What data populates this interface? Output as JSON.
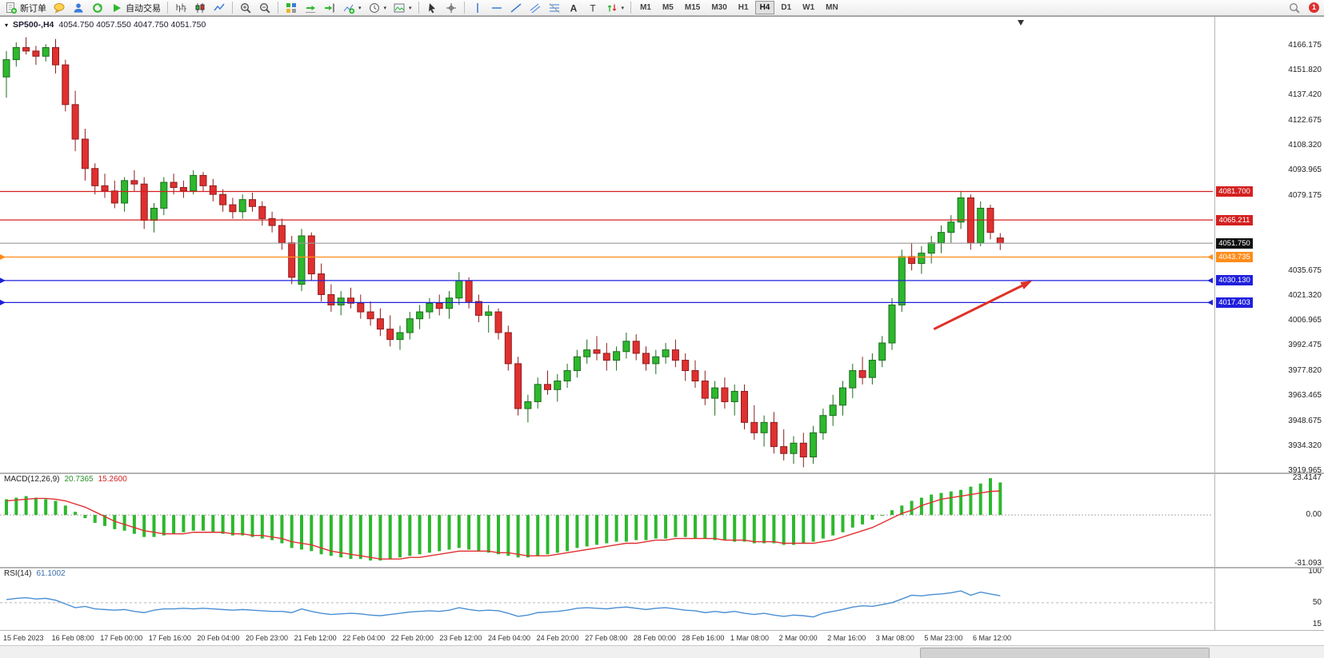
{
  "toolbar": {
    "new_order_label": "新订单",
    "autotrading_label": "自动交易",
    "timeframes": [
      "M1",
      "M5",
      "M15",
      "M30",
      "H1",
      "H4",
      "D1",
      "W1",
      "MN"
    ],
    "active_timeframe": "H4",
    "notification_count": "1",
    "items": [
      {
        "kind": "button",
        "name": "new-order-button",
        "glyph": "newdoc",
        "label": "新订单"
      },
      {
        "kind": "icon",
        "name": "ideas-icon",
        "glyph": "bubble"
      },
      {
        "kind": "icon",
        "name": "community-icon",
        "glyph": "person"
      },
      {
        "kind": "icon",
        "name": "market-refresh-icon",
        "glyph": "refresh"
      },
      {
        "kind": "button",
        "name": "autotrading-button",
        "glyph": "play",
        "label": "自动交易"
      },
      {
        "kind": "sep"
      },
      {
        "kind": "icon",
        "name": "bar-chart-icon",
        "glyph": "bars"
      },
      {
        "kind": "icon",
        "name": "candlestick-chart-icon",
        "glyph": "candles"
      },
      {
        "kind": "icon",
        "name": "line-chart-icon",
        "glyph": "line"
      },
      {
        "kind": "sep"
      },
      {
        "kind": "icon",
        "name": "zoom-in-icon",
        "glyph": "zoomin"
      },
      {
        "kind": "icon",
        "name": "zoom-out-icon",
        "glyph": "zoomout"
      },
      {
        "kind": "sep"
      },
      {
        "kind": "icon",
        "name": "tile-windows-icon",
        "glyph": "tile"
      },
      {
        "kind": "icon",
        "name": "auto-scroll-icon",
        "glyph": "autoscroll"
      },
      {
        "kind": "icon",
        "name": "chart-shift-icon",
        "glyph": "shift"
      },
      {
        "kind": "icon-caret",
        "name": "indicators-icon",
        "glyph": "indicator"
      },
      {
        "kind": "icon-caret",
        "name": "periods-icon",
        "glyph": "clock"
      },
      {
        "kind": "icon-caret",
        "name": "templates-icon",
        "glyph": "template"
      },
      {
        "kind": "sep"
      },
      {
        "kind": "icon",
        "name": "cursor-icon",
        "glyph": "cursor"
      },
      {
        "kind": "icon",
        "name": "crosshair-icon",
        "glyph": "crosshair"
      },
      {
        "kind": "sep"
      },
      {
        "kind": "icon",
        "name": "vertical-line-icon",
        "glyph": "vline"
      },
      {
        "kind": "icon",
        "name": "horizontal-line-icon",
        "glyph": "hline"
      },
      {
        "kind": "icon",
        "name": "trendline-icon",
        "glyph": "trend"
      },
      {
        "kind": "icon",
        "name": "channel-icon",
        "glyph": "channel"
      },
      {
        "kind": "icon",
        "name": "fibonacci-icon",
        "glyph": "fibo"
      },
      {
        "kind": "icon",
        "name": "text-icon",
        "glyph": "textA"
      },
      {
        "kind": "icon",
        "name": "label-icon",
        "glyph": "textT"
      },
      {
        "kind": "icon-caret",
        "name": "arrows-icon",
        "glyph": "arrows"
      },
      {
        "kind": "sep"
      },
      {
        "kind": "tf-group"
      }
    ]
  },
  "chart_data": [
    {
      "type": "candlestick",
      "title": "SP500-,H4",
      "ohlc_display": "4054.750 4057.550 4047.750 4051.750",
      "last_price": "4051.750",
      "ylim": [
        3919.0,
        4181.9
      ],
      "y_ticks": [
        "4166.175",
        "4151.820",
        "4137.420",
        "4122.675",
        "4108.320",
        "4093.965",
        "4079.175",
        "4035.675",
        "4021.320",
        "4006.965",
        "3992.475",
        "3977.820",
        "3963.465",
        "3948.675",
        "3934.320",
        "3919.965"
      ],
      "x_labels": [
        "15 Feb 2023",
        "16 Feb 08:00",
        "17 Feb 00:00",
        "17 Feb 16:00",
        "20 Feb 04:00",
        "20 Feb 23:00",
        "21 Feb 12:00",
        "22 Feb 04:00",
        "22 Feb 20:00",
        "23 Feb 12:00",
        "24 Feb 04:00",
        "24 Feb 20:00",
        "27 Feb 08:00",
        "28 Feb 00:00",
        "28 Feb 16:00",
        "1 Mar 08:00",
        "2 Mar 00:00",
        "2 Mar 16:00",
        "3 Mar 08:00",
        "5 Mar 23:00",
        "6 Mar 12:00"
      ],
      "hlines": [
        {
          "name": "resistance-line-upper",
          "price": 4081.7,
          "label": "4081.700",
          "color": "#d42020",
          "tag_color": "#d42020",
          "ends": false,
          "interactable": true
        },
        {
          "name": "resistance-line-lower",
          "price": 4065.211,
          "label": "4065.211",
          "color": "#d42020",
          "tag_color": "#d42020",
          "ends": false,
          "interactable": true
        },
        {
          "name": "current-price-line",
          "price": 4051.75,
          "label": "4051.750",
          "color": "#9a9a9a",
          "tag_color": "#111111",
          "ends": false,
          "interactable": false
        },
        {
          "name": "support-line-orange",
          "price": 4043.735,
          "label": "4043.735",
          "color": "#ff8c1a",
          "tag_color": "#ff8c1a",
          "ends": true,
          "interactable": true
        },
        {
          "name": "support-line-blue-upper",
          "price": 4030.13,
          "label": "4030.130",
          "color": "#2020dd",
          "tag_color": "#2020dd",
          "ends": true,
          "interactable": true
        },
        {
          "name": "support-line-blue-lower",
          "price": 4017.403,
          "label": "4017.403",
          "color": "#2020dd",
          "tag_color": "#2020dd",
          "ends": true,
          "interactable": true
        }
      ],
      "arrow": {
        "name": "trend-arrow",
        "color": "#e03127",
        "x1_frac": 0.77,
        "price1": 4002.0,
        "x2_frac": 0.851,
        "price2": 4030.0
      },
      "colors": {
        "bull": "#2db82d",
        "bear": "#e03030",
        "bull_edge": "#1e6b1e",
        "bear_edge": "#8f1d1d"
      },
      "candles": [
        [
          4148,
          4163,
          4136,
          4158
        ],
        [
          4158,
          4168,
          4154,
          4165
        ],
        [
          4165,
          4171,
          4161,
          4163
        ],
        [
          4163,
          4166,
          4155,
          4160
        ],
        [
          4160,
          4167,
          4157,
          4165
        ],
        [
          4165,
          4170,
          4150,
          4155
        ],
        [
          4155,
          4158,
          4128,
          4132
        ],
        [
          4132,
          4140,
          4105,
          4112
        ],
        [
          4112,
          4118,
          4088,
          4095
        ],
        [
          4095,
          4098,
          4080,
          4085
        ],
        [
          4085,
          4092,
          4078,
          4082
        ],
        [
          4082,
          4088,
          4072,
          4075
        ],
        [
          4075,
          4090,
          4070,
          4088
        ],
        [
          4088,
          4094,
          4082,
          4086
        ],
        [
          4086,
          4090,
          4060,
          4065
        ],
        [
          4065,
          4075,
          4058,
          4072
        ],
        [
          4072,
          4090,
          4068,
          4087
        ],
        [
          4087,
          4092,
          4080,
          4084
        ],
        [
          4084,
          4088,
          4078,
          4082
        ],
        [
          4082,
          4094,
          4080,
          4091
        ],
        [
          4091,
          4093,
          4082,
          4085
        ],
        [
          4085,
          4089,
          4076,
          4080
        ],
        [
          4080,
          4083,
          4070,
          4074
        ],
        [
          4074,
          4078,
          4066,
          4070
        ],
        [
          4070,
          4080,
          4066,
          4077
        ],
        [
          4077,
          4081,
          4070,
          4073
        ],
        [
          4073,
          4076,
          4062,
          4066
        ],
        [
          4066,
          4070,
          4058,
          4062
        ],
        [
          4062,
          4066,
          4048,
          4052
        ],
        [
          4052,
          4056,
          4028,
          4032
        ],
        [
          4028,
          4060,
          4024,
          4056
        ],
        [
          4056,
          4058,
          4030,
          4034
        ],
        [
          4034,
          4040,
          4018,
          4022
        ],
        [
          4022,
          4028,
          4012,
          4016
        ],
        [
          4016,
          4024,
          4010,
          4020
        ],
        [
          4020,
          4026,
          4014,
          4017
        ],
        [
          4017,
          4022,
          4008,
          4012
        ],
        [
          4012,
          4018,
          4004,
          4008
        ],
        [
          4008,
          4014,
          3998,
          4002
        ],
        [
          4002,
          4010,
          3992,
          3996
        ],
        [
          3996,
          4004,
          3990,
          4000
        ],
        [
          4000,
          4012,
          3996,
          4008
        ],
        [
          4008,
          4016,
          4002,
          4012
        ],
        [
          4012,
          4020,
          4008,
          4017
        ],
        [
          4017,
          4022,
          4010,
          4014
        ],
        [
          4014,
          4024,
          4008,
          4020
        ],
        [
          4020,
          4035,
          4016,
          4030
        ],
        [
          4030,
          4032,
          4014,
          4018
        ],
        [
          4018,
          4022,
          4006,
          4010
        ],
        [
          4010,
          4016,
          4000,
          4012
        ],
        [
          4012,
          4014,
          3996,
          4000
        ],
        [
          4000,
          4004,
          3978,
          3982
        ],
        [
          3982,
          3986,
          3952,
          3956
        ],
        [
          3956,
          3964,
          3948,
          3960
        ],
        [
          3960,
          3974,
          3956,
          3970
        ],
        [
          3970,
          3978,
          3964,
          3967
        ],
        [
          3967,
          3976,
          3960,
          3972
        ],
        [
          3972,
          3982,
          3968,
          3978
        ],
        [
          3978,
          3990,
          3974,
          3986
        ],
        [
          3986,
          3996,
          3982,
          3990
        ],
        [
          3990,
          3998,
          3984,
          3988
        ],
        [
          3988,
          3994,
          3978,
          3984
        ],
        [
          3984,
          3992,
          3978,
          3989
        ],
        [
          3989,
          4000,
          3985,
          3995
        ],
        [
          3995,
          3999,
          3984,
          3988
        ],
        [
          3988,
          3992,
          3978,
          3982
        ],
        [
          3982,
          3990,
          3976,
          3986
        ],
        [
          3986,
          3994,
          3982,
          3990
        ],
        [
          3990,
          3996,
          3980,
          3984
        ],
        [
          3984,
          3988,
          3972,
          3978
        ],
        [
          3978,
          3984,
          3968,
          3972
        ],
        [
          3972,
          3978,
          3958,
          3962
        ],
        [
          3962,
          3972,
          3952,
          3968
        ],
        [
          3968,
          3974,
          3956,
          3960
        ],
        [
          3960,
          3970,
          3952,
          3966
        ],
        [
          3966,
          3970,
          3944,
          3948
        ],
        [
          3948,
          3958,
          3938,
          3942
        ],
        [
          3942,
          3952,
          3934,
          3948
        ],
        [
          3948,
          3954,
          3930,
          3934
        ],
        [
          3934,
          3944,
          3926,
          3930
        ],
        [
          3930,
          3940,
          3924,
          3936
        ],
        [
          3936,
          3942,
          3922,
          3928
        ],
        [
          3928,
          3946,
          3924,
          3942
        ],
        [
          3942,
          3956,
          3938,
          3952
        ],
        [
          3952,
          3964,
          3946,
          3958
        ],
        [
          3958,
          3972,
          3952,
          3968
        ],
        [
          3968,
          3982,
          3962,
          3978
        ],
        [
          3978,
          3986,
          3970,
          3974
        ],
        [
          3974,
          3988,
          3970,
          3984
        ],
        [
          3984,
          3998,
          3980,
          3994
        ],
        [
          3994,
          4020,
          3990,
          4016
        ],
        [
          4016,
          4048,
          4012,
          4044
        ],
        [
          4044,
          4052,
          4036,
          4040
        ],
        [
          4040,
          4050,
          4034,
          4046
        ],
        [
          4046,
          4056,
          4040,
          4052
        ],
        [
          4052,
          4062,
          4046,
          4058
        ],
        [
          4058,
          4068,
          4052,
          4064
        ],
        [
          4064,
          4082,
          4060,
          4078
        ],
        [
          4078,
          4080,
          4048,
          4052
        ],
        [
          4052,
          4076,
          4050,
          4072
        ],
        [
          4072,
          4074,
          4054,
          4058
        ],
        [
          4054.8,
          4057.6,
          4047.8,
          4051.8
        ]
      ]
    },
    {
      "type": "macd",
      "label": "MACD(12,26,9)",
      "value_main": "20.7365",
      "value_signal": "15.2600",
      "y_ticks": [
        "23.4147",
        "0.00",
        "-31.093"
      ],
      "ylim": [
        -33,
        26
      ],
      "colors": {
        "histogram": "#2db82d",
        "signal": "#e03030"
      },
      "histogram": [
        10,
        11,
        12,
        11,
        10,
        9,
        6,
        2,
        -2,
        -5,
        -7,
        -9,
        -10,
        -12,
        -14,
        -14,
        -13,
        -12,
        -11,
        -10,
        -10,
        -11,
        -12,
        -13,
        -13,
        -14,
        -15,
        -16,
        -18,
        -21,
        -22,
        -23,
        -25,
        -26,
        -27,
        -28,
        -28,
        -29,
        -29,
        -28,
        -27,
        -26,
        -25,
        -24,
        -23,
        -22,
        -21,
        -22,
        -23,
        -24,
        -25,
        -26,
        -27,
        -27,
        -26,
        -25,
        -24,
        -23,
        -21,
        -20,
        -19,
        -18,
        -17,
        -17,
        -16,
        -16,
        -15,
        -15,
        -14,
        -14,
        -15,
        -15,
        -16,
        -16,
        -17,
        -17,
        -18,
        -18,
        -18,
        -19,
        -19,
        -18,
        -17,
        -15,
        -13,
        -11,
        -8,
        -6,
        -3,
        0,
        3,
        6,
        9,
        11,
        13,
        14,
        15,
        16,
        18,
        20,
        23.4,
        20.7
      ],
      "signal": [
        9,
        9.5,
        10,
        10.5,
        10.5,
        10,
        9,
        7,
        5,
        2,
        -1,
        -4,
        -6,
        -8,
        -10,
        -11,
        -12,
        -12,
        -12,
        -11,
        -11,
        -11,
        -11,
        -12,
        -12,
        -13,
        -13,
        -14,
        -15,
        -17,
        -18,
        -19,
        -21,
        -23,
        -24,
        -25,
        -26,
        -27,
        -28,
        -28,
        -28,
        -27,
        -27,
        -26,
        -25,
        -24,
        -23,
        -23,
        -23,
        -23,
        -24,
        -24,
        -25,
        -26,
        -26,
        -26,
        -25,
        -24,
        -23,
        -22,
        -21,
        -20,
        -19,
        -18,
        -18,
        -17,
        -16,
        -16,
        -15,
        -15,
        -15,
        -15,
        -15,
        -16,
        -16,
        -16,
        -17,
        -17,
        -17,
        -18,
        -18,
        -18,
        -18,
        -17,
        -16,
        -14,
        -12,
        -10,
        -8,
        -5,
        -2,
        1,
        3,
        6,
        8,
        10,
        11,
        12,
        13,
        14,
        15,
        15.26
      ]
    },
    {
      "type": "rsi",
      "label": "RSI(14)",
      "value_display": "61.1002",
      "y_ticks": [
        "100",
        "50",
        "15"
      ],
      "ylim": [
        15,
        100
      ],
      "level": 50,
      "color": "#4a8fd2",
      "values": [
        55,
        57,
        58,
        56,
        57,
        54,
        48,
        42,
        44,
        40,
        39,
        38,
        39,
        36,
        34,
        38,
        40,
        40,
        41,
        40,
        41,
        40,
        39,
        38,
        39,
        38,
        37,
        36,
        36,
        34,
        40,
        36,
        33,
        31,
        32,
        33,
        32,
        30,
        29,
        31,
        33,
        35,
        36,
        37,
        36,
        38,
        42,
        39,
        37,
        38,
        37,
        33,
        28,
        30,
        34,
        35,
        36,
        38,
        41,
        42,
        41,
        40,
        42,
        43,
        41,
        39,
        41,
        42,
        40,
        38,
        37,
        34,
        36,
        34,
        36,
        33,
        31,
        33,
        30,
        28,
        30,
        29,
        27,
        33,
        36,
        39,
        43,
        45,
        44,
        47,
        50,
        56,
        62,
        61,
        63,
        64,
        66,
        69,
        62,
        67,
        64,
        61.1
      ]
    }
  ]
}
